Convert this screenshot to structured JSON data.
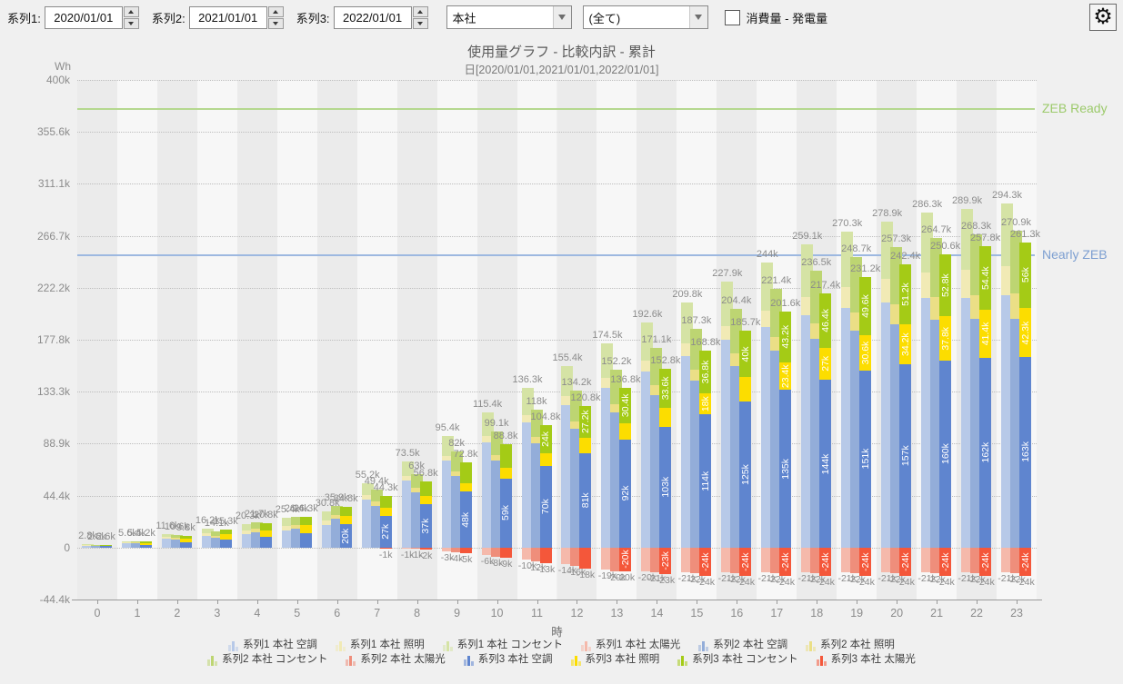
{
  "toolbar": {
    "series_fields": [
      {
        "label": "系列1:",
        "value": "2020/01/01"
      },
      {
        "label": "系列2:",
        "value": "2021/01/01"
      },
      {
        "label": "系列3:",
        "value": "2022/01/01"
      }
    ],
    "building_select": "本社",
    "filter_select": "(全て)",
    "checkbox_label": "消費量 - 発電量",
    "gear_icon": "⚙"
  },
  "chart_data": {
    "type": "bar",
    "stacked": true,
    "title": "使用量グラフ - 比較内訳 - 累計",
    "subtitle": "日[2020/01/01,2021/01/01,2022/01/01]",
    "unit": "Wh",
    "xlabel": "時",
    "x_categories": [
      0,
      1,
      2,
      3,
      4,
      5,
      6,
      7,
      8,
      9,
      10,
      11,
      12,
      13,
      14,
      15,
      16,
      17,
      18,
      19,
      20,
      21,
      22,
      23
    ],
    "y_ticks_k": [
      400,
      355.6,
      311.1,
      266.7,
      222.2,
      177.8,
      133.3,
      88.9,
      44.4,
      0,
      -44.4
    ],
    "ylim_k": [
      -44.4,
      400
    ],
    "grid": "dotted-horizontal",
    "legend_position": "bottom",
    "reference_lines": [
      {
        "label": "ZEB Ready",
        "value_k": 375,
        "line_color": "#b5d88f",
        "text_color": "#9cca6b"
      },
      {
        "label": "Nearly ZEB",
        "value_k": 250,
        "line_color": "#9db8e0",
        "text_color": "#7d9fd1"
      }
    ],
    "components": [
      "空調",
      "照明",
      "コンセント",
      "太陽光"
    ],
    "series": [
      {
        "name": "系列1",
        "date": "2020/01/01",
        "site": "本社",
        "colors": {
          "空調": "#b7c9e8",
          "照明": "#f1eab5",
          "コンセント": "#d5e3a5",
          "太陽光": "#f5b9ab"
        },
        "totals_k": [
          2.8,
          5.6,
          11.6,
          16.2,
          20.3,
          25.4,
          30.8,
          55.2,
          73.5,
          95.4,
          115.4,
          136.3,
          155.4,
          174.5,
          192.6,
          209.8,
          227.9,
          244,
          259.1,
          270.3,
          278.9,
          286.3,
          289.9,
          294.3
        ],
        "空調_k": [
          1.7,
          3.5,
          7.6,
          9.9,
          11.4,
          14.6,
          19.2,
          41.2,
          57.2,
          74.4,
          90.2,
          107,
          122,
          136.9,
          150.9,
          164.1,
          177.5,
          188.9,
          198.9,
          205,
          209.9,
          213.7,
          213.7,
          216
        ],
        "照明_k": [
          0.4,
          0.9,
          1.6,
          2.5,
          3.1,
          3.8,
          3.9,
          4.1,
          4.2,
          4.3,
          5.2,
          6.3,
          7.3,
          8.4,
          9.4,
          10.4,
          12,
          13.6,
          15.7,
          17.7,
          19.8,
          21.9,
          24,
          24.5
        ],
        "コンセント_k": [
          0.7,
          1.2,
          2.4,
          3.8,
          5.8,
          7,
          7.7,
          9.9,
          12.1,
          16.7,
          20,
          23,
          26.1,
          29.2,
          32.3,
          35.3,
          38.4,
          41.5,
          44.5,
          47.6,
          49.2,
          50.7,
          52.2,
          53.8
        ],
        "太陽光_k": [
          0,
          0,
          0,
          0,
          0,
          0,
          0,
          0,
          -1,
          -3,
          -6,
          -10,
          -14,
          -19,
          -20,
          -21,
          -21,
          -21,
          -21,
          -21,
          -21,
          -21,
          -21,
          -21
        ],
        "solar_labels": [
          null,
          null,
          null,
          null,
          null,
          null,
          null,
          null,
          "-1k",
          "-3k",
          "-6k",
          "-10k",
          "-14k",
          "-19k",
          "-20k",
          "-21k",
          "-21k",
          "-21k",
          "-21k",
          "-21k",
          "-21k",
          "-21k",
          "-21k",
          "-21k"
        ]
      },
      {
        "name": "系列2",
        "date": "2021/01/01",
        "site": "本社",
        "colors": {
          "空調": "#93add9",
          "照明": "#ebdf86",
          "コンセント": "#bdd572",
          "太陽光": "#ef8e7b"
        },
        "totals_k": [
          2.6,
          5.4,
          10.6,
          14.1,
          21.7,
          26.4,
          35.9,
          49.4,
          63,
          82,
          99.1,
          118,
          134.2,
          152.2,
          171.1,
          187.3,
          204.4,
          221.4,
          236.5,
          248.7,
          257.3,
          264.7,
          268.3,
          270.9
        ],
        "空調_k": [
          1.5,
          3.4,
          6.8,
          8.1,
          13.2,
          16.1,
          24.8,
          36,
          47.3,
          61.6,
          74.6,
          89.6,
          101.8,
          115.8,
          130.7,
          143,
          155.6,
          168.2,
          178.5,
          185.8,
          191,
          195.1,
          195.4,
          195.9
        ],
        "照明_k": [
          0.4,
          0.8,
          1.4,
          2.2,
          2.7,
          3.3,
          3.4,
          3.5,
          3.6,
          3.7,
          4.5,
          5.4,
          6.3,
          7.2,
          8.1,
          9,
          10.4,
          11.7,
          13.5,
          15.3,
          17.1,
          18.9,
          20.7,
          21.2
        ],
        "コンセント_k": [
          0.7,
          1.2,
          2.4,
          3.8,
          5.8,
          7,
          7.7,
          9.9,
          12.1,
          16.7,
          20,
          23,
          26.1,
          29.2,
          32.3,
          35.3,
          38.4,
          41.5,
          44.5,
          47.6,
          49.2,
          50.7,
          52.2,
          53.8
        ],
        "太陽光_k": [
          0,
          0,
          0,
          0,
          0,
          0,
          0,
          0,
          -1,
          -4,
          -8,
          -12,
          -16,
          -20,
          -21,
          -22,
          -22,
          -22,
          -22,
          -22,
          -22,
          -22,
          -22,
          -22
        ],
        "solar_labels": [
          null,
          null,
          null,
          null,
          null,
          null,
          null,
          null,
          "-1k",
          "-4k",
          "-8k",
          "-12k",
          "-16k",
          "-20k",
          "-21k",
          "-22k",
          "-22k",
          "-22k",
          "-22k",
          "-22k",
          "-22k",
          "-22k",
          "-22k",
          "-22k"
        ]
      },
      {
        "name": "系列3",
        "date": "2022/01/01",
        "site": "本社",
        "colors": {
          "空調": "#5f85cf",
          "照明": "#fcdd00",
          "コンセント": "#a4cb16",
          "太陽光": "#f4573a"
        },
        "totals_k": [
          2.6,
          5.2,
          9.8,
          15.3,
          20.8,
          26.3,
          34.8,
          44.3,
          56.8,
          72.8,
          88.8,
          104.8,
          120.8,
          136.8,
          152.8,
          168.8,
          185.7,
          201.6,
          217.4,
          231.2,
          242.4,
          250.6,
          257.8,
          261.3
        ],
        "空調_k": [
          1.2,
          2.4,
          4.5,
          7,
          9.5,
          12.5,
          20,
          27,
          37,
          48,
          59,
          70,
          81,
          92,
          103,
          114,
          125,
          135,
          144,
          151,
          157,
          160,
          162,
          163
        ],
        "照明_k": [
          0.7,
          1.5,
          2.8,
          4.3,
          5.3,
          6.5,
          6.8,
          7,
          7.2,
          7.4,
          9,
          10.8,
          12.6,
          14.4,
          16.2,
          18,
          20.7,
          23.4,
          27,
          30.6,
          34.2,
          37.8,
          41.4,
          42.3
        ],
        "コンセント_k": [
          0.7,
          1.3,
          2.5,
          4,
          6,
          7.3,
          8,
          10.3,
          12.6,
          17.4,
          20.8,
          24,
          27.2,
          30.4,
          33.6,
          36.8,
          40,
          43.2,
          46.4,
          49.6,
          51.2,
          52.8,
          54.4,
          56
        ],
        "太陽光_k": [
          0,
          0,
          0,
          0,
          0,
          0,
          0,
          -1,
          -2,
          -5,
          -9,
          -13,
          -18,
          -20,
          -23,
          -24,
          -24,
          -24,
          -24,
          -24,
          -24,
          -24,
          -24,
          -24
        ],
        "solar_labels": [
          null,
          null,
          null,
          null,
          null,
          null,
          null,
          "-1k",
          "-2k",
          "-5k",
          "-9k",
          "-13k",
          "-18k",
          "-20k",
          "-23k",
          "-24k",
          "-24k",
          "-24k",
          "-24k",
          "-24k",
          "-24k",
          "-24k",
          "-24k",
          "-24k"
        ],
        "inside_labels": {
          "空調": [
            null,
            null,
            null,
            null,
            null,
            null,
            "20k",
            "27k",
            "37k",
            "48k",
            "59k",
            "70k",
            "81k",
            "92k",
            "103k",
            "114k",
            "125k",
            "135k",
            "144k",
            "151k",
            "157k",
            "160k",
            "162k",
            "163k"
          ],
          "照明": [
            null,
            null,
            null,
            null,
            null,
            null,
            null,
            null,
            null,
            null,
            null,
            null,
            null,
            null,
            null,
            "18k",
            null,
            "23.4k",
            "27k",
            "30.6k",
            "34.2k",
            "37.8k",
            "41.4k",
            "42.3k"
          ],
          "コンセント": [
            null,
            null,
            null,
            null,
            null,
            null,
            null,
            null,
            null,
            null,
            null,
            "24k",
            "27.2k",
            "30.4k",
            "33.6k",
            "36.8k",
            "40k",
            "43.2k",
            "46.4k",
            "49.6k",
            "51.2k",
            "52.8k",
            "54.4k",
            "56k"
          ],
          "太陽光": [
            null,
            null,
            null,
            null,
            null,
            null,
            null,
            null,
            null,
            null,
            null,
            null,
            null,
            "-20k",
            "-23k",
            "-24k",
            "-24k",
            "-24k",
            "-24k",
            "-24k",
            "-24k",
            "-24k",
            "-24k",
            "-24k"
          ]
        }
      }
    ]
  },
  "legend": {
    "rows": [
      [
        {
          "label": "系列1 本社 空調",
          "color": "#b7c9e8"
        },
        {
          "label": "系列1 本社 照明",
          "color": "#f1eab5"
        },
        {
          "label": "系列1 本社 コンセント",
          "color": "#d5e3a5"
        },
        {
          "label": "系列1 本社 太陽光",
          "color": "#f5b9ab"
        },
        {
          "label": "系列2 本社 空調",
          "color": "#93add9"
        },
        {
          "label": "系列2 本社 照明",
          "color": "#ebdf86"
        }
      ],
      [
        {
          "label": "系列2 本社 コンセント",
          "color": "#bdd572"
        },
        {
          "label": "系列2 本社 太陽光",
          "color": "#ef8e7b"
        },
        {
          "label": "系列3 本社 空調",
          "color": "#5f85cf"
        },
        {
          "label": "系列3 本社 照明",
          "color": "#fcdd00"
        },
        {
          "label": "系列3 本社 コンセント",
          "color": "#a4cb16"
        },
        {
          "label": "系列3 本社 太陽光",
          "color": "#f4573a"
        }
      ]
    ]
  }
}
